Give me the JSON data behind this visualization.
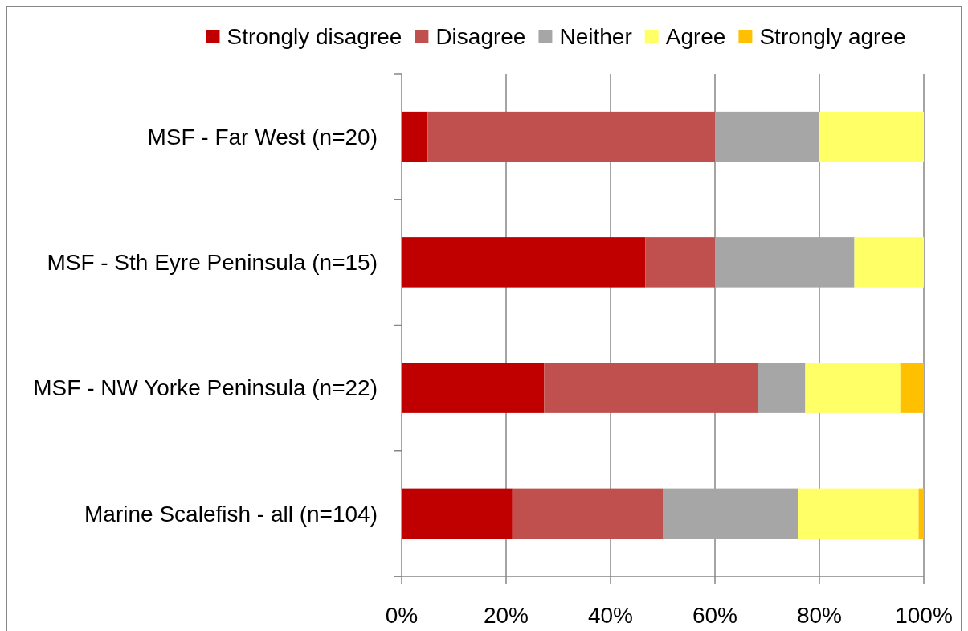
{
  "chart_data": {
    "type": "bar",
    "orientation": "horizontal",
    "stacked": true,
    "categories": [
      "MSF - Far West (n=20)",
      "MSF - Sth Eyre Peninsula (n=15)",
      "MSF - NW Yorke Peninsula (n=22)",
      "Marine Scalefish - all (n=104)"
    ],
    "series": [
      {
        "name": "Strongly disagree",
        "color": "#c00000",
        "values": [
          5,
          46.7,
          27.3,
          21.2
        ]
      },
      {
        "name": "Disagree",
        "color": "#c0504d",
        "values": [
          55,
          13.3,
          40.9,
          28.8
        ]
      },
      {
        "name": "Neither",
        "color": "#a6a6a6",
        "values": [
          20,
          26.7,
          9.1,
          26.0
        ]
      },
      {
        "name": "Agree",
        "color": "#ffff66",
        "values": [
          20,
          13.3,
          18.2,
          23.0
        ]
      },
      {
        "name": "Strongly agree",
        "color": "#ffc000",
        "values": [
          0,
          0,
          4.5,
          1.0
        ]
      }
    ],
    "xlim": [
      0,
      100
    ],
    "xticks": [
      {
        "value": 0,
        "label": "0%"
      },
      {
        "value": 20,
        "label": "20%"
      },
      {
        "value": 40,
        "label": "40%"
      },
      {
        "value": 60,
        "label": "60%"
      },
      {
        "value": 80,
        "label": "80%"
      },
      {
        "value": 100,
        "label": "100%"
      }
    ],
    "grid": "x",
    "legend": "top"
  }
}
